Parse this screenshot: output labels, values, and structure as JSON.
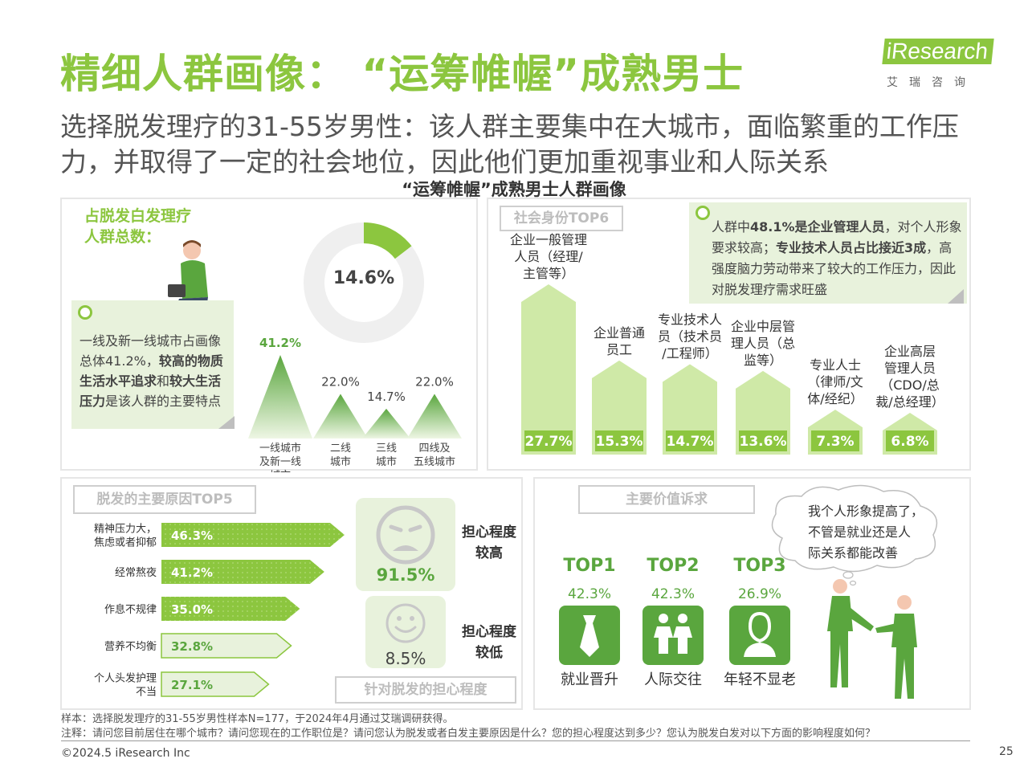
{
  "header": {
    "title": "精细人群画像：  “运筹帷幄”成熟男士",
    "subtitle": "选择脱发理疗的31-55岁男性：该人群主要集中在大城市，面临繁重的工作压力，并取得了一定的社会地位，因此他们更加重视事业和人际关系",
    "section_title": "“运筹帷幄”成熟男士人群画像",
    "logo_word": "iResearch",
    "logo_cn": "艾瑞咨询"
  },
  "city_panel": {
    "heading_1": "占脱发白发理疗",
    "heading_2": "人群总数：",
    "note_parts": [
      "一线及新一线城市占画像总体41.2%，",
      "较高的物质生活水平追求",
      "和",
      "较大生活压力",
      "是该人群的主要特点"
    ]
  },
  "colors": {
    "green": "#8cc63f",
    "dark_green": "#5aa63e",
    "pale_green": "#e8f2dc",
    "light_green": "#cfe9a7",
    "grey": "#e6e6e6"
  },
  "chart_data": [
    {
      "type": "pie",
      "name": "donut",
      "values": [
        14.6,
        85.4
      ],
      "labels": [
        "14.6%",
        ""
      ]
    },
    {
      "type": "area",
      "name": "city",
      "categories": [
        "一线城市及新一线城市",
        "二线城市",
        "三线城市",
        "四线及五线城市"
      ],
      "category_lines": [
        [
          "一线城市",
          "及新一线",
          "城市"
        ],
        [
          "二线",
          "城市"
        ],
        [
          "三线",
          "城市"
        ],
        [
          "四线及",
          "五线城市"
        ]
      ],
      "values": [
        41.2,
        22.0,
        14.7,
        22.0
      ],
      "value_labels": [
        "41.2%",
        "22.0%",
        "14.7%",
        "22.0%"
      ]
    },
    {
      "type": "bar",
      "name": "identity",
      "title": "社会身份TOP6",
      "categories": [
        "企业一般管理人员（经理/主管等）",
        "企业普通员工",
        "专业技术人员（技术员/工程师）",
        "企业中层管理人员（总监等）",
        "专业人士（律师/文体/经纪）",
        "企业高层管理人员（CDO/总裁/总经理）"
      ],
      "category_lines": [
        [
          "企业一般管理",
          "人员（经理/",
          "主管等）"
        ],
        [
          "企业普通",
          "员工"
        ],
        [
          "专业技术人",
          "员（技术员",
          "/工程师）"
        ],
        [
          "企业中层管",
          "理人员（总",
          "监等）"
        ],
        [
          "专业人士",
          "（律师/文",
          "体/经纪）"
        ],
        [
          "企业高层",
          "管理人员",
          "（CDO/总",
          "裁/总经理）"
        ]
      ],
      "values": [
        27.7,
        15.3,
        14.7,
        13.6,
        7.3,
        6.8
      ],
      "value_labels": [
        "27.7%",
        "15.3%",
        "14.7%",
        "13.6%",
        "7.3%",
        "6.8%"
      ]
    },
    {
      "type": "bar",
      "name": "reasons",
      "title": "脱发的主要原因TOP5",
      "categories": [
        "精神压力大，焦虑或者抑郁",
        "经常熬夜",
        "作息不规律",
        "营养不均衡",
        "个人头发护理不当"
      ],
      "category_lines": [
        [
          "精神压力大，",
          "焦虑或者抑郁"
        ],
        [
          "经常熬夜"
        ],
        [
          "作息不规律"
        ],
        [
          "营养不均衡"
        ],
        [
          "个人头发护理",
          "不当"
        ]
      ],
      "values": [
        46.3,
        41.2,
        35.0,
        32.8,
        27.1
      ],
      "value_labels": [
        "46.3%",
        "41.2%",
        "35.0%",
        "32.8%",
        "27.1%"
      ]
    }
  ],
  "identity_note": {
    "parts": [
      "人群中",
      "48.1%是企业管理人员",
      "，对个人形象要求较高；",
      "专业技术人员占比接近3成",
      "，高强度脑力劳动带来了较大的工作压力，因此对脱发理疗需求旺盛"
    ]
  },
  "worry": {
    "high_value": "91.5%",
    "high_label_1": "担心程度",
    "high_label_2": "较高",
    "low_value": "8.5%",
    "low_label_1": "担心程度",
    "low_label_2": "较低",
    "caption": "针对脱发的担心程度"
  },
  "appeal": {
    "header": "主要价值诉求",
    "bubble_lines": [
      "我个人形象提高了，",
      "不管是就业还是人",
      "际关系都能改善"
    ],
    "items": [
      {
        "rank": "TOP1",
        "pct": "42.3%",
        "name": "就业晋升",
        "icon": "tie-icon",
        "value": 42.3
      },
      {
        "rank": "TOP2",
        "pct": "42.3%",
        "name": "人际交往",
        "icon": "people-icon",
        "value": 42.3
      },
      {
        "rank": "TOP3",
        "pct": "26.9%",
        "name": "年轻不显老",
        "icon": "person-icon",
        "value": 26.9
      }
    ]
  },
  "footer": {
    "sample": "样本：选择脱发理疗的31-55岁男性样本N=177，于2024年4月通过艾瑞调研获得。",
    "note": "注释：请问您目前居住在哪个城市？请问您现在的工作职位是？请问您认为脱发或者白发主要原因是什么？您的担心程度达到多少？您认为脱发白发对以下方面的影响程度如何？",
    "copyright": "©2024.5 iResearch Inc",
    "page": "25"
  }
}
